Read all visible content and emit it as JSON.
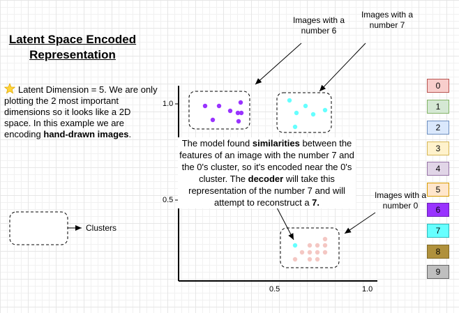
{
  "title_line1": "Latent Space Encoded",
  "title_line2": "Representation",
  "description": {
    "icon": "star-icon",
    "part1": "Latent Dimension = 5. We are only plotting the 2 most important dimensions so it looks like a 2D space. In this example we are encoding ",
    "bold": "hand-drawn images",
    "part2": "."
  },
  "annotations": {
    "six": "Images with a number 6",
    "seven": "Images with a number 7",
    "zero": "Images with a number 0"
  },
  "explanation": {
    "t1": "The model found ",
    "b1": "similarities",
    "t2": " between the features of an image with the number 7 and the 0's cluster, so it's encoded near the 0's cluster. The ",
    "b2": "decoder",
    "t3": " will take this representation of the number 7 and will attempt to reconstruct a ",
    "b3": "7."
  },
  "axes": {
    "y_ticks": [
      "1.0",
      "0.5"
    ],
    "x_ticks": [
      "0.5",
      "1.0"
    ]
  },
  "legend_clusters_label": "Clusters",
  "colors": {
    "axis": "#000000",
    "dot6": "#9933ff",
    "dot7": "#66ffff",
    "dot0": "#f4c7c3",
    "arrow": "#000000"
  },
  "classes": [
    {
      "label": "0",
      "fill": "#f8cecc",
      "border": "#b85450"
    },
    {
      "label": "1",
      "fill": "#d5e8d4",
      "border": "#82b366"
    },
    {
      "label": "2",
      "fill": "#dae8fc",
      "border": "#6c8ebf"
    },
    {
      "label": "3",
      "fill": "#fff2cc",
      "border": "#d6b656"
    },
    {
      "label": "4",
      "fill": "#e1d5e7",
      "border": "#9673a6"
    },
    {
      "label": "5",
      "fill": "#ffe6cc",
      "border": "#d79b00"
    },
    {
      "label": "6",
      "fill": "#9933ff",
      "border": "#6a1fb3"
    },
    {
      "label": "7",
      "fill": "#66ffff",
      "border": "#2fb8b8"
    },
    {
      "label": "8",
      "fill": "#b0913c",
      "border": "#7f6824"
    },
    {
      "label": "9",
      "fill": "#bfbfbf",
      "border": "#666666"
    }
  ]
}
